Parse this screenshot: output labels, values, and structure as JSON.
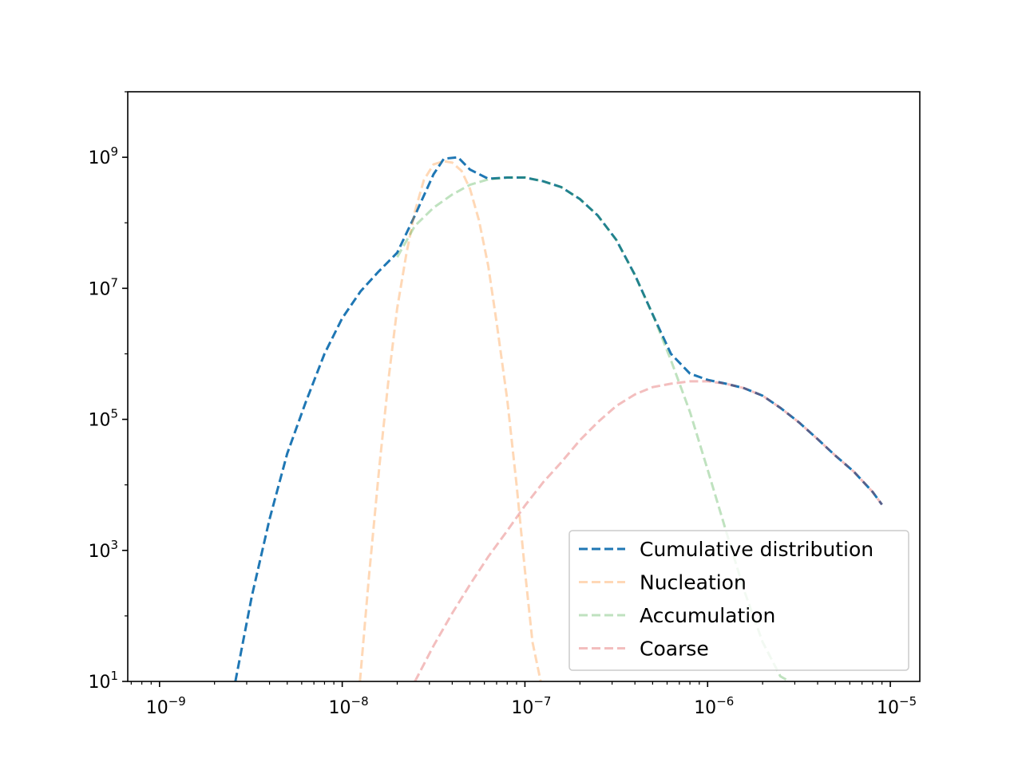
{
  "chart_data": {
    "type": "line",
    "title": "",
    "xlabel": "",
    "ylabel": "",
    "xscale": "log",
    "yscale": "log",
    "xlim": [
      6.7e-10,
      1.45e-05
    ],
    "ylim": [
      10,
      10000000000.0
    ],
    "grid": false,
    "legend_position": "lower-right",
    "x_ticks": [
      {
        "value": 1e-09,
        "base": "10",
        "exp": "−9"
      },
      {
        "value": 1e-08,
        "base": "10",
        "exp": "−8"
      },
      {
        "value": 1e-07,
        "base": "10",
        "exp": "−7"
      },
      {
        "value": 1e-06,
        "base": "10",
        "exp": "−6"
      },
      {
        "value": 1e-05,
        "base": "10",
        "exp": "−5"
      }
    ],
    "y_ticks": [
      {
        "value": 10,
        "base": "10",
        "exp": "1"
      },
      {
        "value": 1000,
        "base": "10",
        "exp": "3"
      },
      {
        "value": 100000,
        "base": "10",
        "exp": "5"
      },
      {
        "value": 10000000,
        "base": "10",
        "exp": "7"
      },
      {
        "value": 1000000000,
        "base": "10",
        "exp": "9"
      }
    ],
    "series": [
      {
        "name": "Cumulative distribution",
        "color": "#1f77b4",
        "opacity": 1.0,
        "x": [
          2.6e-09,
          3.2e-09,
          4e-09,
          5e-09,
          6.3e-09,
          8e-09,
          1e-08,
          1.26e-08,
          1.58e-08,
          2e-08,
          2.5e-08,
          3.16e-08,
          3.6e-08,
          4.3e-08,
          5e-08,
          6.3e-08,
          8e-08,
          1e-07,
          1.26e-07,
          1.58e-07,
          2e-07,
          2.5e-07,
          3.16e-07,
          4e-07,
          5e-07,
          6.3e-07,
          8e-07,
          1e-06,
          1.26e-06,
          1.58e-06,
          2e-06,
          2.5e-06,
          3.16e-06,
          4e-06,
          5e-06,
          6.3e-06,
          8e-06,
          9e-06
        ],
        "y": [
          10,
          200,
          3000,
          30000,
          180000,
          1000000,
          3500000,
          9000000,
          18000000,
          35000000,
          130000000,
          550000000,
          950000000,
          1000000000,
          650000000,
          470000000,
          490000000,
          490000000,
          430000000,
          350000000,
          230000000,
          130000000,
          55000000,
          16000000,
          4000000,
          1000000,
          500000,
          400000,
          350000,
          300000,
          230000,
          150000,
          90000,
          50000,
          28000,
          16000,
          7800,
          5000
        ]
      },
      {
        "name": "Nucleation",
        "color": "#ff7f0e",
        "opacity": 0.3,
        "x": [
          1.25e-08,
          1.4e-08,
          1.6e-08,
          1.8e-08,
          2e-08,
          2.25e-08,
          2.5e-08,
          2.8e-08,
          3.16e-08,
          3.6e-08,
          4e-08,
          4.5e-08,
          5e-08,
          5.6e-08,
          6.3e-08,
          7e-08,
          8e-08,
          9e-08,
          1e-07,
          1.1e-07,
          1.22e-07
        ],
        "y": [
          10,
          400,
          20000,
          450000,
          5000000,
          35000000,
          150000000,
          450000000,
          780000000,
          870000000,
          830000000,
          620000000,
          330000000,
          110000000,
          22000000,
          3000000,
          200000,
          10000,
          500,
          40,
          10
        ]
      },
      {
        "name": "Accumulation",
        "color": "#2ca02c",
        "opacity": 0.3,
        "x": [
          2e-08,
          2.5e-08,
          3.16e-08,
          4e-08,
          5e-08,
          6.3e-08,
          8e-08,
          1e-07,
          1.26e-07,
          1.58e-07,
          2e-07,
          2.5e-07,
          3.16e-07,
          4e-07,
          5e-07,
          6.3e-07,
          8e-07,
          1e-06,
          1.26e-06,
          1.58e-06,
          2e-06,
          2.5e-06,
          2.8e-06
        ],
        "y": [
          30000000,
          90000000,
          170000000,
          270000000,
          380000000,
          460000000,
          490000000,
          490000000,
          430000000,
          350000000,
          230000000,
          130000000,
          55000000,
          16000000,
          4000000,
          800000,
          130000,
          17000,
          2000,
          250,
          40,
          12,
          10
        ]
      },
      {
        "name": "Coarse",
        "color": "#d62728",
        "opacity": 0.3,
        "x": [
          2.5e-08,
          3.16e-08,
          4e-08,
          5e-08,
          6.3e-08,
          8e-08,
          1e-07,
          1.26e-07,
          1.58e-07,
          2e-07,
          2.5e-07,
          3.16e-07,
          4e-07,
          5e-07,
          6.3e-07,
          8e-07,
          1e-06,
          1.26e-06,
          1.58e-06,
          2e-06,
          2.5e-06,
          3.16e-06,
          4e-06,
          5e-06,
          6.3e-06,
          8e-06,
          9e-06
        ],
        "y": [
          10,
          35,
          110,
          300,
          800,
          2000,
          4800,
          11000,
          22000,
          48000,
          90000,
          160000,
          240000,
          310000,
          350000,
          380000,
          380000,
          350000,
          300000,
          230000,
          150000,
          90000,
          50000,
          28000,
          16000,
          7800,
          5000
        ]
      }
    ]
  }
}
